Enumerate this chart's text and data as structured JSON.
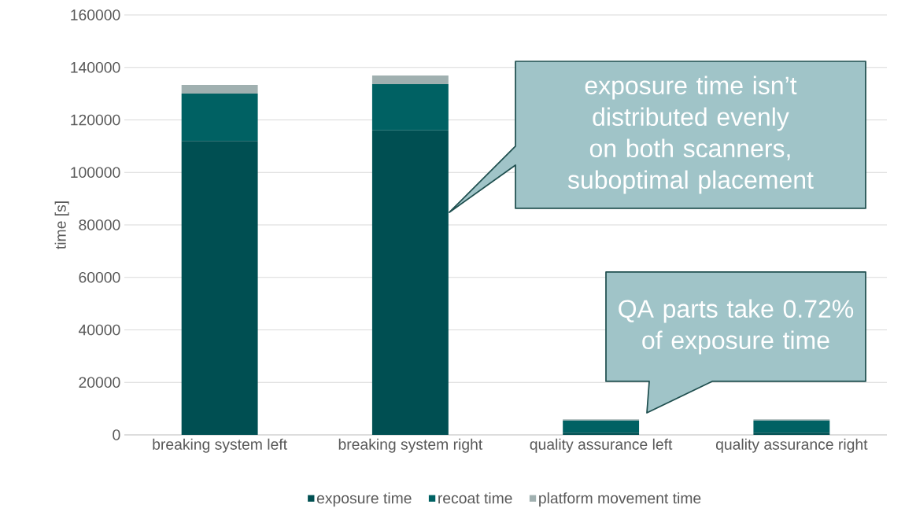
{
  "chart_data": {
    "type": "bar",
    "stacked": true,
    "ylabel": "time [s]",
    "categories": [
      "breaking system left",
      "breaking system right",
      "quality assurance left",
      "quality assurance right"
    ],
    "series": [
      {
        "name": "exposure time",
        "color": "#004f52",
        "values": [
          112000,
          116000,
          800,
          800
        ]
      },
      {
        "name": "recoat time",
        "color": "#006163",
        "values": [
          18000,
          17600,
          4700,
          4700
        ]
      },
      {
        "name": "platform movement time",
        "color": "#a0b0b0",
        "values": [
          3300,
          3300,
          400,
          400
        ]
      }
    ],
    "ylim": [
      0,
      160000
    ],
    "yticks": [
      0,
      20000,
      40000,
      60000,
      80000,
      100000,
      120000,
      140000,
      160000
    ],
    "grid": "y",
    "legend": "bottom",
    "annotations": [
      "exposure time isn’t distributed evenly on both scanners, suboptimal placement",
      "QA parts take 0.72% of exposure time"
    ]
  }
}
